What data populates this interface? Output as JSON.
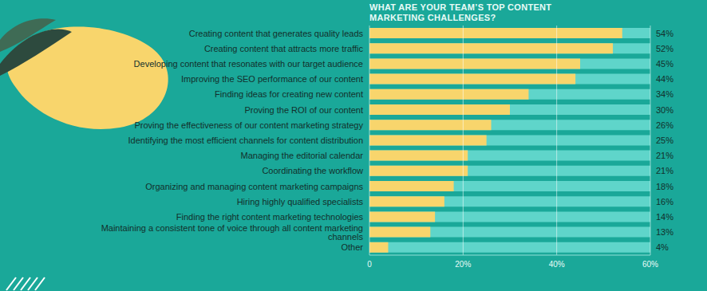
{
  "chart_data": {
    "type": "bar",
    "orientation": "horizontal",
    "title": "WHAT ARE YOUR TEAM’S TOP CONTENT MARKETING CHALLENGES?",
    "categories": [
      "Creating content that generates quality leads",
      "Creating content that attracts more traffic",
      "Developing content that resonates with our target audience",
      "Improving the SEO performance of our content",
      "Finding ideas for creating new content",
      "Proving the ROI of our content",
      "Proving the effectiveness of our content marketing strategy",
      "Identifying the most efficient channels for content distribution",
      "Managing the editorial calendar",
      "Coordinating the workflow",
      "Organizing and managing content marketing campaigns",
      "Hiring highly qualified specialists",
      "Finding the right content marketing technologies",
      "Maintaining a consistent tone of voice through all content marketing channels",
      "Other"
    ],
    "values": [
      54,
      52,
      45,
      44,
      34,
      30,
      26,
      25,
      21,
      21,
      18,
      16,
      14,
      13,
      4
    ],
    "value_labels": [
      "54%",
      "52%",
      "45%",
      "44%",
      "34%",
      "30%",
      "26%",
      "25%",
      "21%",
      "21%",
      "18%",
      "16%",
      "14%",
      "13%",
      "4%"
    ],
    "color": "#f8d56c",
    "xlim": [
      0,
      60
    ],
    "xticks": [
      0,
      {
        "value": 20,
        "label": "20%"
      },
      {
        "value": 40,
        "label": "40%"
      },
      {
        "value": 60,
        "label": "60%"
      }
    ],
    "grid": true,
    "data_labels": true
  }
}
